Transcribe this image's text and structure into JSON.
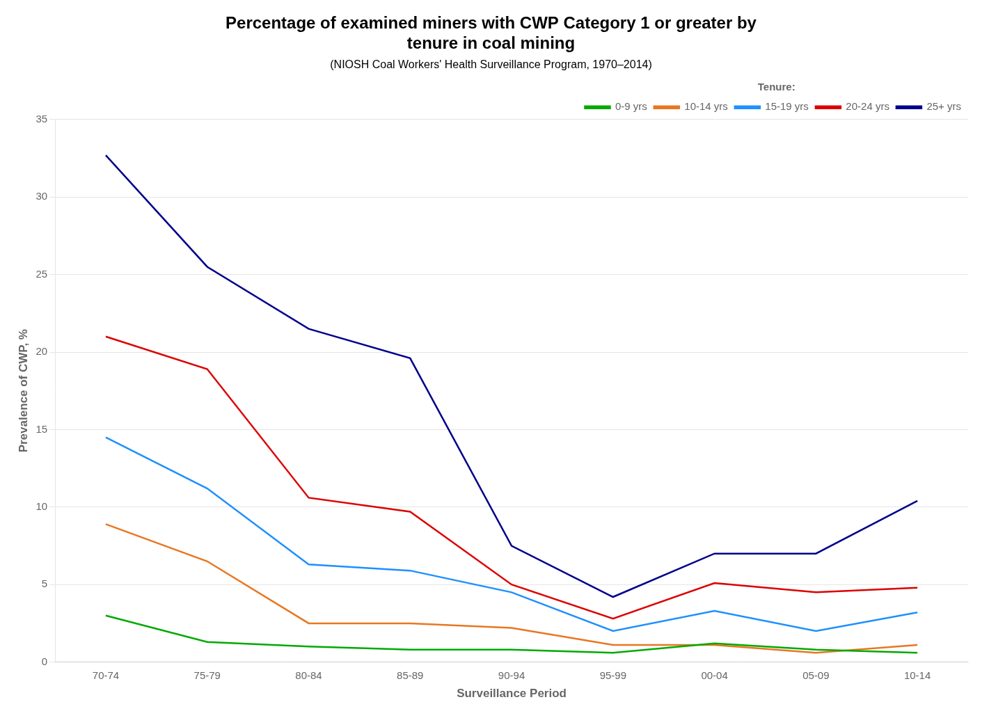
{
  "chart_data": {
    "type": "line",
    "title": [
      "Percentage of examined miners with CWP Category 1 or greater by",
      "tenure in coal mining"
    ],
    "subtitle": "(NIOSH Coal Workers' Health Surveillance Program, 1970–2014)",
    "x_label": "Surveillance Period",
    "y_label": "Prevalence of CWP, %",
    "categories": [
      "70-74",
      "75-79",
      "80-84",
      "85-89",
      "90-94",
      "95-99",
      "00-04",
      "05-09",
      "10-14"
    ],
    "series": [
      {
        "name": "0-9 yrs",
        "color": "#00AA00",
        "values": [
          3.0,
          1.3,
          1.0,
          0.8,
          0.8,
          0.6,
          1.2,
          0.8,
          0.6
        ]
      },
      {
        "name": "10-14 yrs",
        "color": "#E87722",
        "values": [
          8.9,
          6.5,
          2.5,
          2.5,
          2.2,
          1.1,
          1.1,
          0.6,
          1.1
        ]
      },
      {
        "name": "15-19 yrs",
        "color": "#1E90FF",
        "values": [
          14.5,
          11.2,
          6.3,
          5.9,
          4.5,
          2.0,
          3.3,
          2.0,
          3.2
        ]
      },
      {
        "name": "20-24 yrs",
        "color": "#DD0000",
        "values": [
          21.0,
          18.9,
          10.6,
          9.7,
          5.0,
          2.8,
          5.1,
          4.5,
          4.8
        ]
      },
      {
        "name": "25+ yrs",
        "color": "#00008B",
        "values": [
          32.7,
          25.5,
          21.5,
          19.6,
          7.5,
          4.2,
          7.0,
          7.0,
          10.4
        ]
      }
    ],
    "legend_title": "Tenure:",
    "legend": "upper right",
    "ylim": [
      0,
      35
    ],
    "yticks": [
      0,
      5,
      10,
      15,
      20,
      25,
      30,
      35
    ],
    "grid": "y"
  }
}
